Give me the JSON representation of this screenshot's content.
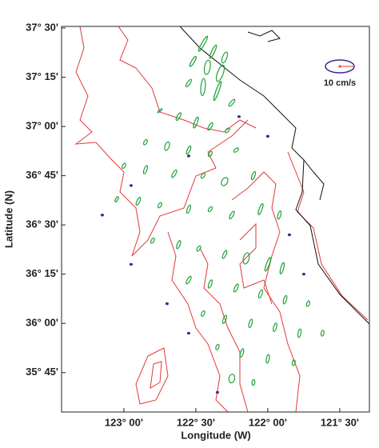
{
  "chart_data": {
    "type": "ellipse-map",
    "xlabel": "Longitude (W)",
    "ylabel": "Latitude (N)",
    "scale_label": "10 cm/s",
    "xlim": [
      -123.433,
      -121.294
    ],
    "ylim": [
      35.55,
      37.508
    ],
    "xticks": [
      {
        "value": -123.0,
        "label": "123° 00'"
      },
      {
        "value": -122.5,
        "label": "122° 30'"
      },
      {
        "value": -122.0,
        "label": "122° 00'"
      },
      {
        "value": -121.5,
        "label": "121° 30'"
      }
    ],
    "yticks": [
      {
        "value": 35.75,
        "label": "35° 45'"
      },
      {
        "value": 36.0,
        "label": "36° 00'"
      },
      {
        "value": 36.25,
        "label": "36° 15'"
      },
      {
        "value": 36.5,
        "label": "36° 30'"
      },
      {
        "value": 36.75,
        "label": "36° 45'"
      },
      {
        "value": 37.0,
        "label": "37° 00'"
      },
      {
        "value": 37.25,
        "label": "37° 15'"
      },
      {
        "value": 37.5,
        "label": "37° 30'"
      }
    ],
    "series": [
      {
        "color": "#1fa33a",
        "x": [
          -122.45,
          -122.38,
          -122.3,
          -122.52,
          -122.42,
          -122.33,
          -122.55,
          -122.45,
          -122.35,
          -122.25,
          -122.75,
          -122.62,
          -122.5,
          -122.4,
          -122.28,
          -122.85,
          -122.7,
          -122.55,
          -122.4,
          -122.22,
          -123.0,
          -122.85,
          -122.65,
          -122.45,
          -122.3,
          -122.1,
          -123.05,
          -122.9,
          -122.75,
          -122.55,
          -122.4,
          -122.25,
          -122.05,
          -121.92,
          -122.8,
          -122.62,
          -122.48,
          -122.3,
          -122.15,
          -122.0,
          -121.9,
          -122.55,
          -122.4,
          -122.22,
          -122.05,
          -121.88,
          -121.72,
          -122.45,
          -122.3,
          -122.12,
          -121.95,
          -121.78,
          -121.62,
          -122.35,
          -122.18,
          -122.0,
          -121.82,
          -122.25,
          -122.1
        ],
        "y": [
          37.42,
          37.38,
          37.35,
          37.33,
          37.3,
          37.27,
          37.22,
          37.2,
          37.18,
          37.12,
          37.08,
          37.05,
          37.02,
          37.0,
          36.98,
          36.92,
          36.9,
          36.88,
          36.86,
          36.88,
          36.8,
          36.78,
          36.76,
          36.75,
          36.72,
          36.75,
          36.63,
          36.62,
          36.6,
          36.58,
          36.58,
          36.55,
          36.58,
          36.55,
          36.42,
          36.4,
          36.38,
          36.35,
          36.33,
          36.3,
          36.28,
          36.22,
          36.2,
          36.18,
          36.15,
          36.12,
          36.1,
          36.05,
          36.02,
          36.0,
          35.98,
          35.95,
          35.95,
          35.88,
          35.85,
          35.82,
          35.8,
          35.72,
          35.7
        ],
        "major": [
          6,
          5,
          4,
          4,
          5,
          6,
          3,
          6,
          7,
          3,
          2,
          3,
          4,
          3,
          2,
          2,
          3,
          3,
          2,
          2,
          2,
          3,
          3,
          2,
          3,
          3,
          2,
          3,
          2,
          3,
          2,
          3,
          4,
          3,
          2,
          3,
          2,
          3,
          4,
          5,
          4,
          3,
          3,
          3,
          3,
          3,
          2,
          2,
          3,
          3,
          3,
          3,
          2,
          2,
          3,
          3,
          2,
          3,
          2
        ],
        "minor": [
          1,
          1,
          1.5,
          1,
          2,
          2,
          1,
          1.5,
          1,
          1,
          0.5,
          1,
          1,
          1,
          1,
          1,
          1.5,
          1,
          1,
          1,
          1,
          1,
          1,
          1,
          2,
          1,
          0.8,
          1,
          1,
          1,
          1,
          1,
          1,
          1,
          1,
          1,
          1,
          1,
          2,
          1,
          1,
          1,
          1,
          1,
          1,
          1,
          1,
          1,
          1,
          1,
          1,
          1,
          1,
          1,
          1,
          1,
          1,
          2,
          1
        ],
        "angle": [
          60,
          65,
          70,
          60,
          80,
          70,
          55,
          85,
          70,
          50,
          40,
          60,
          70,
          60,
          50,
          60,
          70,
          65,
          60,
          40,
          60,
          70,
          60,
          55,
          60,
          70,
          60,
          65,
          60,
          70,
          55,
          60,
          70,
          75,
          60,
          70,
          60,
          65,
          75,
          70,
          75,
          60,
          70,
          65,
          70,
          75,
          70,
          65,
          70,
          75,
          75,
          80,
          80,
          70,
          75,
          80,
          80,
          80,
          85
        ]
      },
      {
        "color": "#3a2a8f",
        "x": [
          -122.95,
          -123.15,
          -122.95,
          -122.7,
          -122.55,
          -122.35,
          -122.55,
          -122.2,
          -122.0,
          -121.85,
          -121.75
        ],
        "y": [
          36.7,
          36.55,
          36.3,
          36.1,
          35.95,
          35.65,
          36.85,
          37.05,
          36.95,
          36.45,
          36.25
        ],
        "major": [
          0.8,
          0.8,
          0.8,
          0.8,
          0.8,
          0.8,
          0.8,
          0.8,
          0.8,
          0.8,
          0.8
        ],
        "minor": [
          0.6,
          0.6,
          0.6,
          0.6,
          0.6,
          0.6,
          0.6,
          0.6,
          0.6,
          0.6,
          0.6
        ],
        "angle": [
          0,
          0,
          0,
          0,
          0,
          0,
          0,
          0,
          0,
          0,
          0
        ]
      }
    ]
  }
}
